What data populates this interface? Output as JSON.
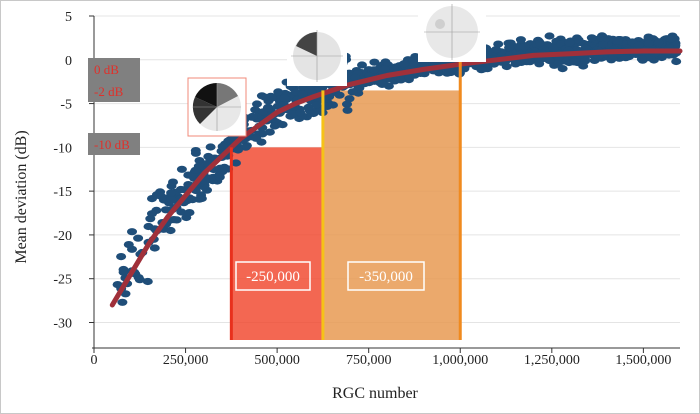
{
  "chart_data": {
    "type": "scatter",
    "title": "",
    "xlabel": "RGC number",
    "ylabel": "Mean deviation (dB)",
    "xlim": [
      0,
      1600000
    ],
    "ylim": [
      -32,
      5
    ],
    "x_ticks": [
      0,
      250000,
      500000,
      750000,
      1000000,
      1250000,
      1500000
    ],
    "x_tick_labels": [
      "0",
      "250,000",
      "500,000",
      "750,000",
      "1,000,000",
      "1,250,000",
      "1,500,000"
    ],
    "y_ticks": [
      5,
      0,
      -5,
      -10,
      -15,
      -20,
      -25,
      -30
    ],
    "y_tick_labels": [
      "5",
      "0",
      "-5",
      "-10",
      "-15",
      "-20",
      "-25",
      "-30"
    ],
    "grid": true,
    "colors": {
      "points": "#1f4e79",
      "fit_curve": "#a0303a",
      "region_red": "#f0462c",
      "region_orange": "#e89a52",
      "line_red": "#e8301c",
      "line_yellow": "#f6c218",
      "line_orange": "#f08a1e",
      "tag_bg": "#808080",
      "tag_text": "#e0302a"
    },
    "fit_curve": {
      "x": [
        50000,
        100000,
        150000,
        200000,
        250000,
        300000,
        350000,
        400000,
        450000,
        500000,
        550000,
        600000,
        650000,
        700000,
        750000,
        800000,
        900000,
        1000000,
        1100000,
        1200000,
        1300000,
        1400000,
        1500000,
        1600000
      ],
      "y": [
        -28,
        -24.5,
        -21,
        -18,
        -15.5,
        -13,
        -11,
        -9,
        -7.5,
        -6,
        -5,
        -4.2,
        -3.5,
        -2.8,
        -2.3,
        -1.8,
        -1.1,
        -0.5,
        0,
        0.5,
        0.7,
        0.9,
        1.0,
        1.0
      ]
    },
    "reference_lines": [
      {
        "x": 375000,
        "md_from": -10,
        "label": "-250,000"
      },
      {
        "x": 625000,
        "md_from": -2
      },
      {
        "x": 1000000,
        "md_from": -2,
        "label": "-350,000"
      }
    ],
    "md_tags": [
      {
        "label": "0 dB",
        "md": 0
      },
      {
        "label": "-2 dB",
        "md": -2
      },
      {
        "label": "-10 dB",
        "md": -10
      }
    ],
    "band_labels": [
      "-250,000",
      "-350,000"
    ],
    "field_icons": [
      "visual-field-severe",
      "visual-field-moderate",
      "visual-field-mild"
    ]
  }
}
